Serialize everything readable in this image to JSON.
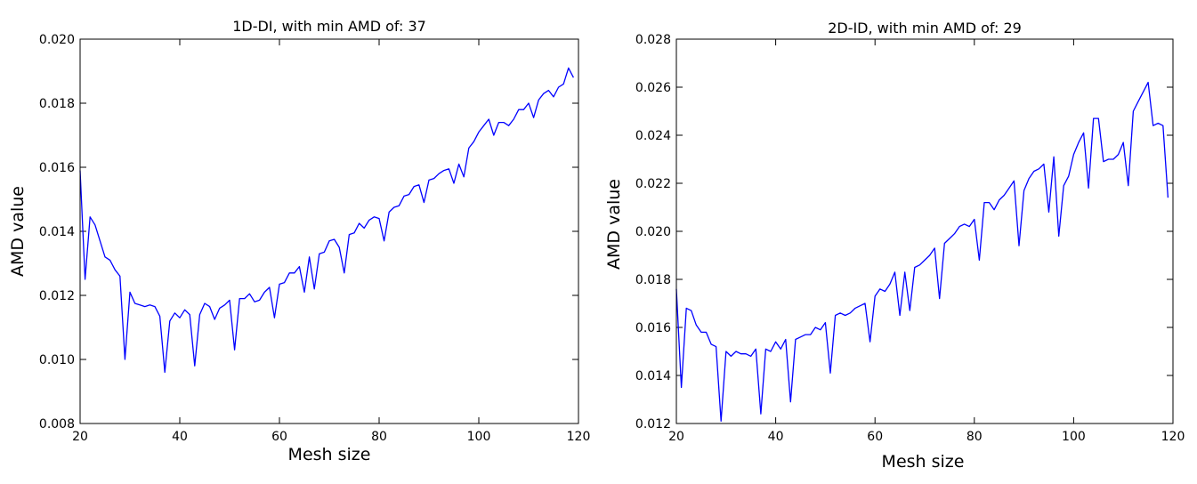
{
  "chart_data": [
    {
      "type": "line",
      "title": "1D-DI, with min AMD of: 37",
      "xlabel": "Mesh size",
      "ylabel": "AMD value",
      "xlim": [
        20,
        120
      ],
      "ylim": [
        0.008,
        0.02
      ],
      "xticks": [
        20,
        40,
        60,
        80,
        100,
        120
      ],
      "xtick_labels": [
        "20",
        "40",
        "60",
        "80",
        "100",
        "120"
      ],
      "yticks": [
        0.008,
        0.01,
        0.012,
        0.014,
        0.016,
        0.018,
        0.02
      ],
      "ytick_labels": [
        "0.008",
        "0.010",
        "0.012",
        "0.014",
        "0.016",
        "0.018",
        "0.020"
      ],
      "grid": false,
      "line_color": "#0000ff",
      "series": [
        {
          "x": [
            20,
            21,
            22,
            23,
            24,
            25,
            26,
            27,
            28,
            29,
            30,
            31,
            32,
            33,
            34,
            35,
            36,
            37,
            38,
            39,
            40,
            41,
            42,
            43,
            44,
            45,
            46,
            47,
            48,
            49,
            50,
            51,
            52,
            53,
            54,
            55,
            56,
            57,
            58,
            59,
            60,
            61,
            62,
            63,
            64,
            65,
            66,
            67,
            68,
            69,
            70,
            71,
            72,
            73,
            74,
            75,
            76,
            77,
            78,
            79,
            80,
            81,
            82,
            83,
            84,
            85,
            86,
            87,
            88,
            89,
            90,
            91,
            92,
            93,
            94,
            95,
            96,
            97,
            98,
            99,
            100,
            101,
            102,
            103,
            104,
            105,
            106,
            107,
            108,
            109,
            110,
            111,
            112,
            113,
            114,
            115,
            116,
            117,
            118,
            119
          ],
          "y": [
            0.0159,
            0.0125,
            0.01445,
            0.0142,
            0.0137,
            0.0132,
            0.0131,
            0.0128,
            0.0126,
            0.01,
            0.0121,
            0.01175,
            0.0117,
            0.01165,
            0.0117,
            0.01165,
            0.01135,
            0.0096,
            0.0112,
            0.01145,
            0.0113,
            0.01155,
            0.0114,
            0.0098,
            0.0114,
            0.01175,
            0.01165,
            0.01125,
            0.0116,
            0.0117,
            0.01185,
            0.0103,
            0.0119,
            0.0119,
            0.01205,
            0.0118,
            0.01185,
            0.0121,
            0.01225,
            0.0113,
            0.01235,
            0.0124,
            0.0127,
            0.0127,
            0.0129,
            0.0121,
            0.0132,
            0.0122,
            0.0133,
            0.01335,
            0.0137,
            0.01375,
            0.0135,
            0.0127,
            0.0139,
            0.01395,
            0.01425,
            0.0141,
            0.01435,
            0.01445,
            0.0144,
            0.0137,
            0.0146,
            0.01475,
            0.0148,
            0.0151,
            0.01515,
            0.0154,
            0.01545,
            0.0149,
            0.0156,
            0.01565,
            0.0158,
            0.0159,
            0.01595,
            0.0155,
            0.0161,
            0.0157,
            0.0166,
            0.0168,
            0.0171,
            0.0173,
            0.0175,
            0.017,
            0.0174,
            0.0174,
            0.0173,
            0.0175,
            0.0178,
            0.0178,
            0.018,
            0.01755,
            0.0181,
            0.0183,
            0.0184,
            0.0182,
            0.0185,
            0.0186,
            0.0191,
            0.0188
          ]
        }
      ]
    },
    {
      "type": "line",
      "title": "2D-ID, with min AMD of: 29",
      "xlabel": "Mesh size",
      "ylabel": "AMD value",
      "xlim": [
        20,
        120
      ],
      "ylim": [
        0.012,
        0.028
      ],
      "xticks": [
        20,
        40,
        60,
        80,
        100,
        120
      ],
      "xtick_labels": [
        "20",
        "40",
        "60",
        "80",
        "100",
        "120"
      ],
      "yticks": [
        0.012,
        0.014,
        0.016,
        0.018,
        0.02,
        0.022,
        0.024,
        0.026,
        0.028
      ],
      "ytick_labels": [
        "0.012",
        "0.014",
        "0.016",
        "0.018",
        "0.020",
        "0.022",
        "0.024",
        "0.026",
        "0.028"
      ],
      "grid": false,
      "line_color": "#0000ff",
      "series": [
        {
          "x": [
            20,
            21,
            22,
            23,
            24,
            25,
            26,
            27,
            28,
            29,
            30,
            31,
            32,
            33,
            34,
            35,
            36,
            37,
            38,
            39,
            40,
            41,
            42,
            43,
            44,
            45,
            46,
            47,
            48,
            49,
            50,
            51,
            52,
            53,
            54,
            55,
            56,
            57,
            58,
            59,
            60,
            61,
            62,
            63,
            64,
            65,
            66,
            67,
            68,
            69,
            70,
            71,
            72,
            73,
            74,
            75,
            76,
            77,
            78,
            79,
            80,
            81,
            82,
            83,
            84,
            85,
            86,
            87,
            88,
            89,
            90,
            91,
            92,
            93,
            94,
            95,
            96,
            97,
            98,
            99,
            100,
            101,
            102,
            103,
            104,
            105,
            106,
            107,
            108,
            109,
            110,
            111,
            112,
            113,
            114,
            115,
            116,
            117,
            118,
            119
          ],
          "y": [
            0.0176,
            0.0135,
            0.0168,
            0.0167,
            0.0161,
            0.0158,
            0.0158,
            0.0153,
            0.0152,
            0.0121,
            0.015,
            0.0148,
            0.015,
            0.0149,
            0.0149,
            0.0148,
            0.0151,
            0.0124,
            0.0151,
            0.015,
            0.0154,
            0.0151,
            0.0155,
            0.0129,
            0.0155,
            0.0156,
            0.0157,
            0.0157,
            0.016,
            0.0159,
            0.0162,
            0.0141,
            0.0165,
            0.0166,
            0.0165,
            0.0166,
            0.0168,
            0.0169,
            0.017,
            0.0154,
            0.0173,
            0.0176,
            0.0175,
            0.0178,
            0.0183,
            0.0165,
            0.0183,
            0.0167,
            0.0185,
            0.0186,
            0.0188,
            0.019,
            0.0193,
            0.0172,
            0.0195,
            0.0197,
            0.0199,
            0.0202,
            0.0203,
            0.0202,
            0.0205,
            0.0188,
            0.0212,
            0.0212,
            0.0209,
            0.0213,
            0.0215,
            0.0218,
            0.0221,
            0.0194,
            0.0217,
            0.0222,
            0.0225,
            0.0226,
            0.0228,
            0.0208,
            0.0231,
            0.0198,
            0.0219,
            0.0223,
            0.0232,
            0.0237,
            0.0241,
            0.0218,
            0.0247,
            0.0247,
            0.0229,
            0.023,
            0.023,
            0.0232,
            0.0237,
            0.0219,
            0.025,
            0.0254,
            0.0258,
            0.0262,
            0.0244,
            0.0245,
            0.0244,
            0.0214
          ]
        }
      ]
    }
  ]
}
